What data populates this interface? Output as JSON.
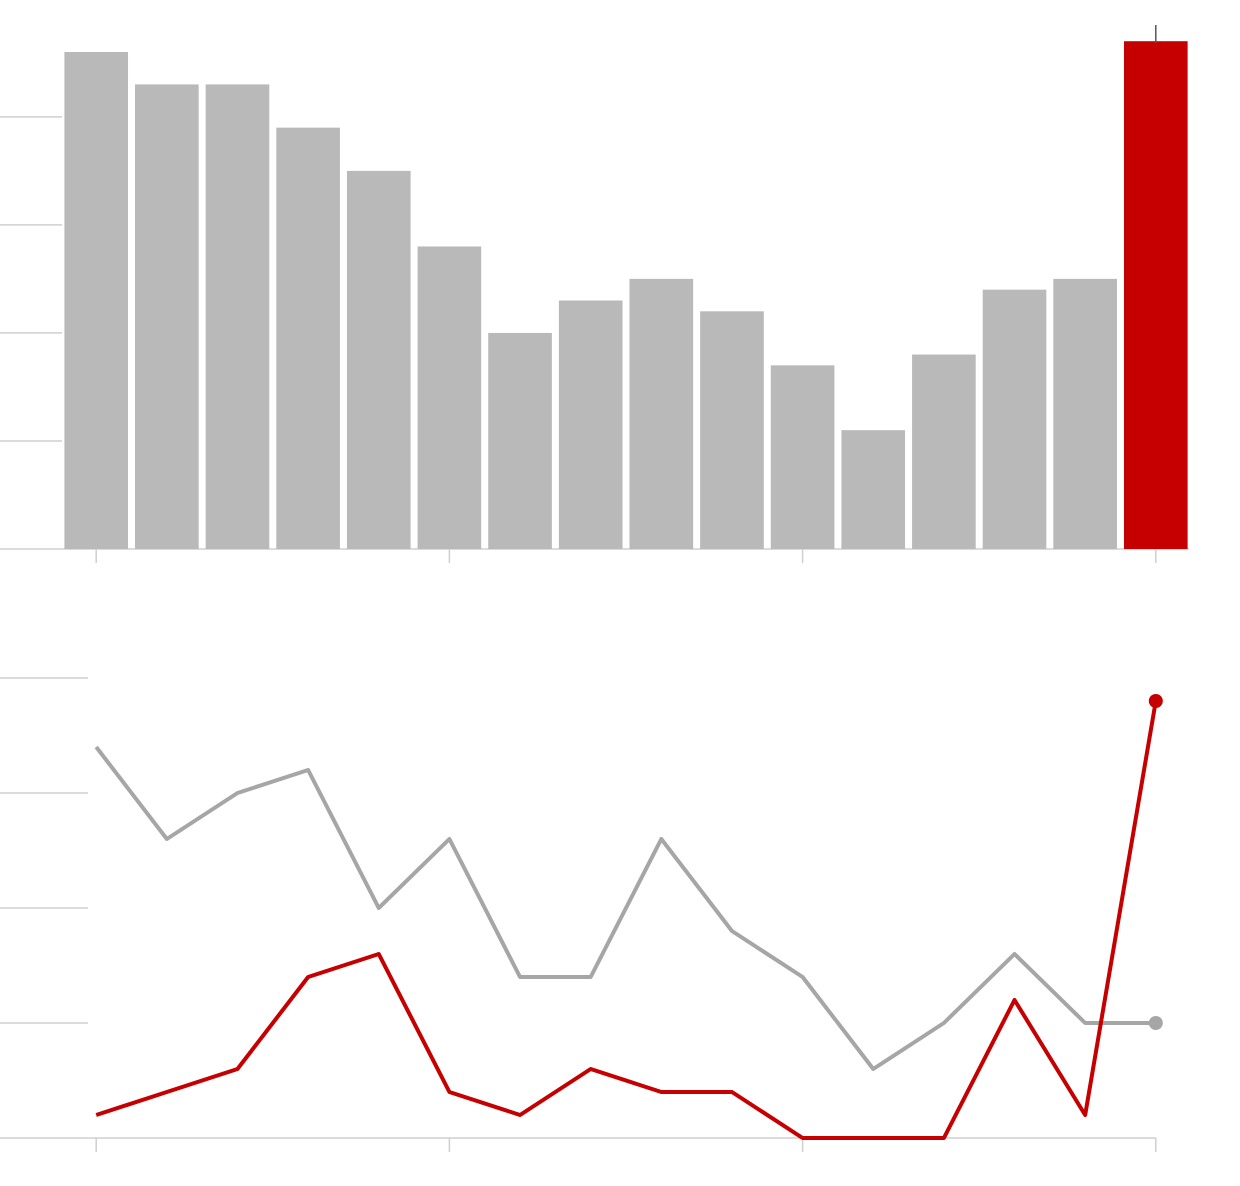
{
  "chart_data": [
    {
      "type": "bar",
      "x": [
        0,
        1,
        2,
        3,
        4,
        5,
        6,
        7,
        8,
        9,
        10,
        11,
        12,
        13,
        14,
        15
      ],
      "values": [
        46,
        43,
        43,
        39,
        35,
        28,
        20,
        23,
        25,
        22,
        17,
        11,
        18,
        24,
        25,
        47
      ],
      "colors": [
        "#b9b9b9",
        "#b9b9b9",
        "#b9b9b9",
        "#b9b9b9",
        "#b9b9b9",
        "#b9b9b9",
        "#b9b9b9",
        "#b9b9b9",
        "#b9b9b9",
        "#b9b9b9",
        "#b9b9b9",
        "#b9b9b9",
        "#b9b9b9",
        "#b9b9b9",
        "#b9b9b9",
        "#c60000"
      ],
      "xlim": [
        -0.47,
        15.47
      ],
      "xticks": [
        0,
        5,
        10,
        15
      ],
      "ylim": [
        0,
        48.5
      ],
      "yticks": [
        0,
        10,
        20,
        30,
        40
      ]
    },
    {
      "type": "line",
      "x": [
        0,
        1,
        2,
        3,
        4,
        5,
        6,
        7,
        8,
        9,
        10,
        11,
        12,
        13,
        14,
        15
      ],
      "series": [
        {
          "color": "#a6a6a6",
          "values": [
            34,
            26,
            30,
            32,
            20,
            26,
            14,
            14,
            26,
            18,
            14,
            6,
            10,
            16,
            10,
            10
          ]
        },
        {
          "color": "#c60000",
          "values": [
            2,
            4,
            6,
            14,
            16,
            4,
            2,
            6,
            4,
            4,
            0,
            0,
            0,
            12,
            2,
            38
          ]
        }
      ],
      "xlim": [
        -0.47,
        15.47
      ],
      "xticks": [
        0,
        5,
        10,
        15
      ],
      "ylim": [
        0,
        40
      ],
      "yticks": [
        0,
        10,
        20,
        30,
        40
      ]
    }
  ]
}
